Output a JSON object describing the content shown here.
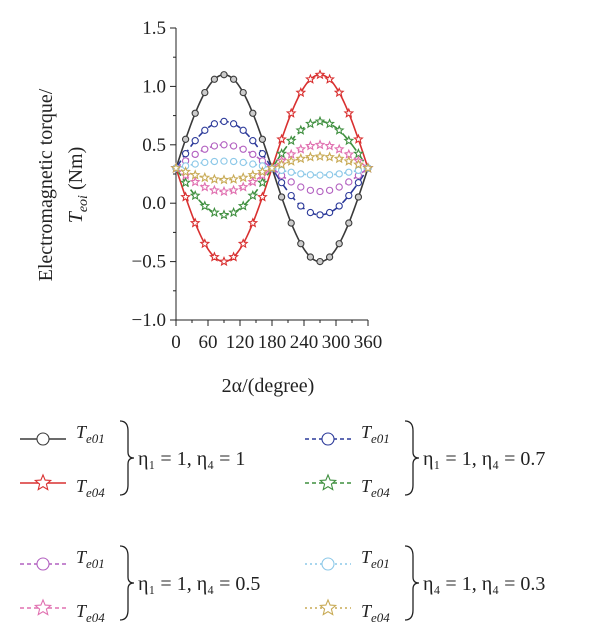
{
  "chart_data": {
    "type": "line",
    "xlabel": "2α/(degree)",
    "ylabel_line1": "Electromagnetic torque/",
    "ylabel_line2_main": "T",
    "ylabel_line2_sub": "eoi",
    "ylabel_line2_unit": " (Nm)",
    "xlim": [
      0,
      360
    ],
    "ylim": [
      -1.0,
      1.5
    ],
    "x_ticks": [
      0,
      60,
      120,
      180,
      240,
      300,
      360
    ],
    "y_ticks": [
      -1.0,
      -0.5,
      0.0,
      0.5,
      1.0,
      1.5
    ],
    "y_tick_labels": [
      "−1.0",
      "−0.5",
      "0.0",
      "0.5",
      "1.0",
      "1.5"
    ],
    "x": [
      0,
      18,
      36,
      54,
      72,
      90,
      108,
      126,
      144,
      162,
      180,
      198,
      216,
      234,
      252,
      270,
      288,
      306,
      324,
      342,
      360
    ],
    "series": [
      {
        "name": "T_e01 (η1 = 1, η4 = 1)",
        "color": "#3a3a3a",
        "dash": "",
        "marker": "circle",
        "marker_fill": "#cccccc",
        "y": [
          0.3,
          0.547,
          0.77,
          0.947,
          1.061,
          1.1,
          1.061,
          0.947,
          0.77,
          0.547,
          0.3,
          0.053,
          -0.17,
          -0.347,
          -0.461,
          -0.5,
          -0.461,
          -0.347,
          -0.17,
          0.053,
          0.3
        ]
      },
      {
        "name": "T_e04 (η1 = 1, η4 = 1)",
        "color": "#d93030",
        "dash": "",
        "marker": "star",
        "marker_fill": "none",
        "y": [
          0.3,
          0.053,
          -0.17,
          -0.347,
          -0.461,
          -0.5,
          -0.461,
          -0.347,
          -0.17,
          0.053,
          0.3,
          0.547,
          0.77,
          0.947,
          1.061,
          1.1,
          1.061,
          0.947,
          0.77,
          0.547,
          0.3
        ]
      },
      {
        "name": "T_e01 (η1 = 1, η4 = 0.7)",
        "color": "#2c3a9a",
        "dash": "9,4",
        "marker": "circle",
        "marker_fill": "none",
        "y": [
          0.3,
          0.424,
          0.535,
          0.624,
          0.68,
          0.7,
          0.68,
          0.624,
          0.535,
          0.424,
          0.3,
          0.176,
          0.065,
          -0.024,
          -0.08,
          -0.1,
          -0.08,
          -0.024,
          0.065,
          0.176,
          0.3
        ]
      },
      {
        "name": "T_e04 (η1 = 1, η4 = 0.7)",
        "color": "#3f8f3f",
        "dash": "9,4",
        "marker": "star",
        "marker_fill": "none",
        "y": [
          0.3,
          0.176,
          0.065,
          -0.024,
          -0.08,
          -0.1,
          -0.08,
          -0.024,
          0.065,
          0.176,
          0.3,
          0.424,
          0.535,
          0.624,
          0.68,
          0.7,
          0.68,
          0.624,
          0.535,
          0.424,
          0.3
        ]
      },
      {
        "name": "T_e01 (η1 = 1, η4 = 0.5)",
        "color": "#b260c0",
        "dash": "6,4",
        "marker": "circle",
        "marker_fill": "none",
        "y": [
          0.3,
          0.362,
          0.418,
          0.462,
          0.49,
          0.5,
          0.49,
          0.462,
          0.418,
          0.362,
          0.3,
          0.238,
          0.182,
          0.138,
          0.11,
          0.1,
          0.11,
          0.138,
          0.182,
          0.238,
          0.3
        ]
      },
      {
        "name": "T_e04 (η1 = 1, η4 = 0.5)",
        "color": "#e070b0",
        "dash": "6,4",
        "marker": "star",
        "marker_fill": "none",
        "y": [
          0.3,
          0.238,
          0.182,
          0.138,
          0.11,
          0.1,
          0.11,
          0.138,
          0.182,
          0.238,
          0.3,
          0.362,
          0.418,
          0.462,
          0.49,
          0.5,
          0.49,
          0.462,
          0.418,
          0.362,
          0.3
        ]
      },
      {
        "name": "T_e01 (η4 = 1, η4 = 0.3)",
        "color": "#8cc8e8",
        "dash": "2,3",
        "marker": "circle",
        "marker_fill": "none",
        "y": [
          0.3,
          0.319,
          0.335,
          0.349,
          0.357,
          0.36,
          0.357,
          0.349,
          0.335,
          0.319,
          0.3,
          0.281,
          0.265,
          0.251,
          0.243,
          0.24,
          0.243,
          0.251,
          0.265,
          0.281,
          0.3
        ]
      },
      {
        "name": "T_e04 (η4 = 1, η4 = 0.3)",
        "color": "#c8aa55",
        "dash": "2,3",
        "marker": "star",
        "marker_fill": "none",
        "y": [
          0.3,
          0.269,
          0.241,
          0.219,
          0.205,
          0.2,
          0.205,
          0.219,
          0.241,
          0.269,
          0.3,
          0.331,
          0.359,
          0.381,
          0.395,
          0.4,
          0.395,
          0.381,
          0.359,
          0.331,
          0.3
        ]
      }
    ]
  },
  "legend": {
    "groups": [
      {
        "top_label": "e01",
        "bottom_label": "e04",
        "condition": "η₁ = 1, η₄ = 1",
        "top": {
          "color": "#3a3a3a",
          "dash": "",
          "marker": "circle"
        },
        "bottom": {
          "color": "#d93030",
          "dash": "",
          "marker": "star"
        }
      },
      {
        "top_label": "e01",
        "bottom_label": "e04",
        "condition": "η₁ = 1, η₄ = 0.7",
        "top": {
          "color": "#2c3a9a",
          "dash": "4,3",
          "marker": "circle"
        },
        "bottom": {
          "color": "#3f8f3f",
          "dash": "4,3",
          "marker": "star"
        }
      },
      {
        "top_label": "e01",
        "bottom_label": "e04",
        "condition": "η₁ = 1, η₄ = 0.5",
        "top": {
          "color": "#b260c0",
          "dash": "4,3",
          "marker": "circle"
        },
        "bottom": {
          "color": "#e070b0",
          "dash": "4,3",
          "marker": "star"
        }
      },
      {
        "top_label": "e01",
        "bottom_label": "e04",
        "condition": "η₄ = 1, η₄ = 0.3",
        "top": {
          "color": "#8cc8e8",
          "dash": "2,3",
          "marker": "circle"
        },
        "bottom": {
          "color": "#c8aa55",
          "dash": "2,3",
          "marker": "star"
        }
      }
    ]
  }
}
